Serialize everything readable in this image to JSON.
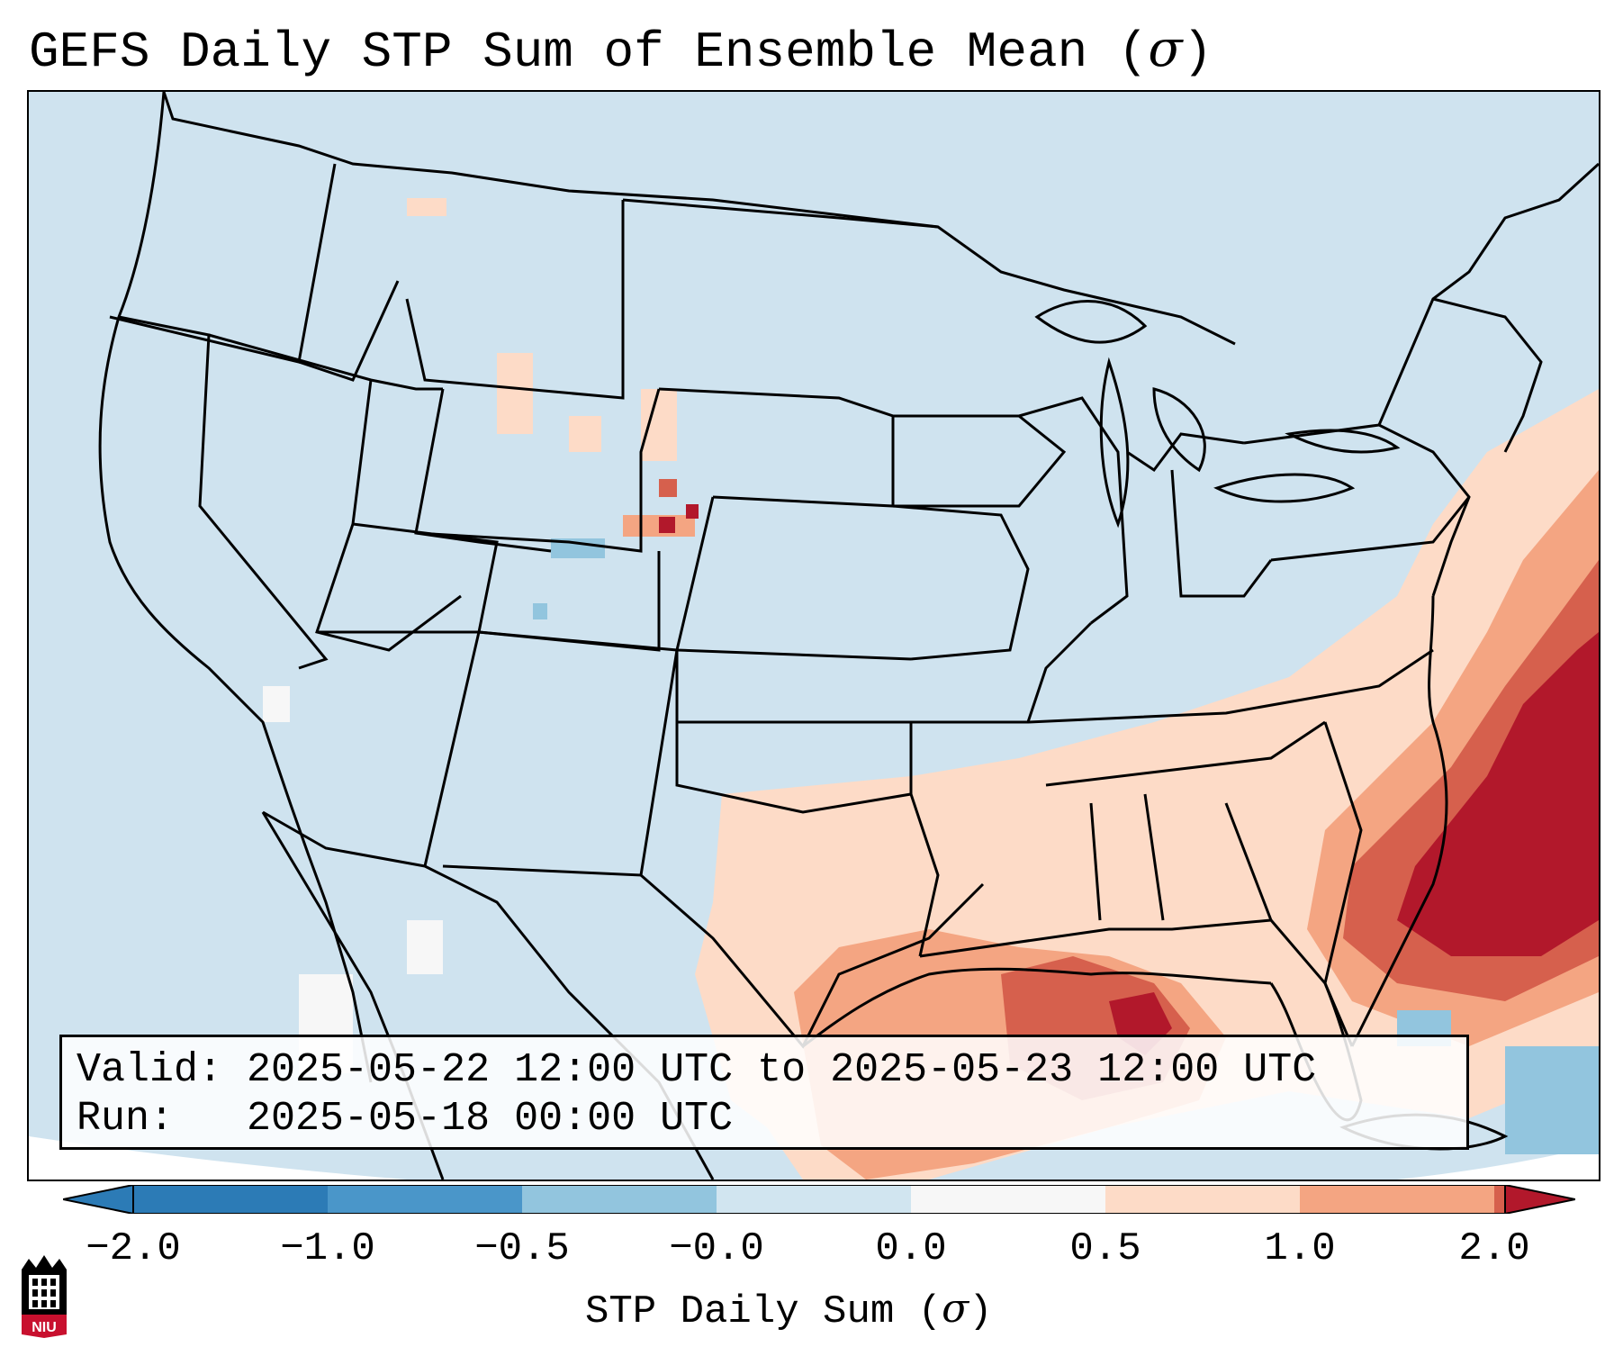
{
  "header": {
    "title": "GEFS Daily STP Sum of Ensemble Mean (",
    "title_sigma": "σ",
    "title_close": ")"
  },
  "info": {
    "valid_line": "Valid: 2025-05-22 12:00 UTC to 2025-05-23 12:00 UTC",
    "run_line": "Run:   2025-05-18 00:00 UTC"
  },
  "colorbar": {
    "label": "STP Daily Sum (",
    "label_sigma": "σ",
    "label_close": ")",
    "ticks": [
      "−2.0",
      "−1.0",
      "−0.5",
      "−0.0",
      "0.0",
      "0.5",
      "1.0",
      "2.0"
    ],
    "colors": [
      "#2c7bb6",
      "#4a96c9",
      "#92c5de",
      "#d1e5f0",
      "#f7f7f7",
      "#fddbc7",
      "#f4a582",
      "#d6604d",
      "#b2182b"
    ]
  },
  "logo": {
    "text": "NIU"
  },
  "colors": {
    "ocean_land": "#cfe3ef",
    "border": "#000000"
  }
}
